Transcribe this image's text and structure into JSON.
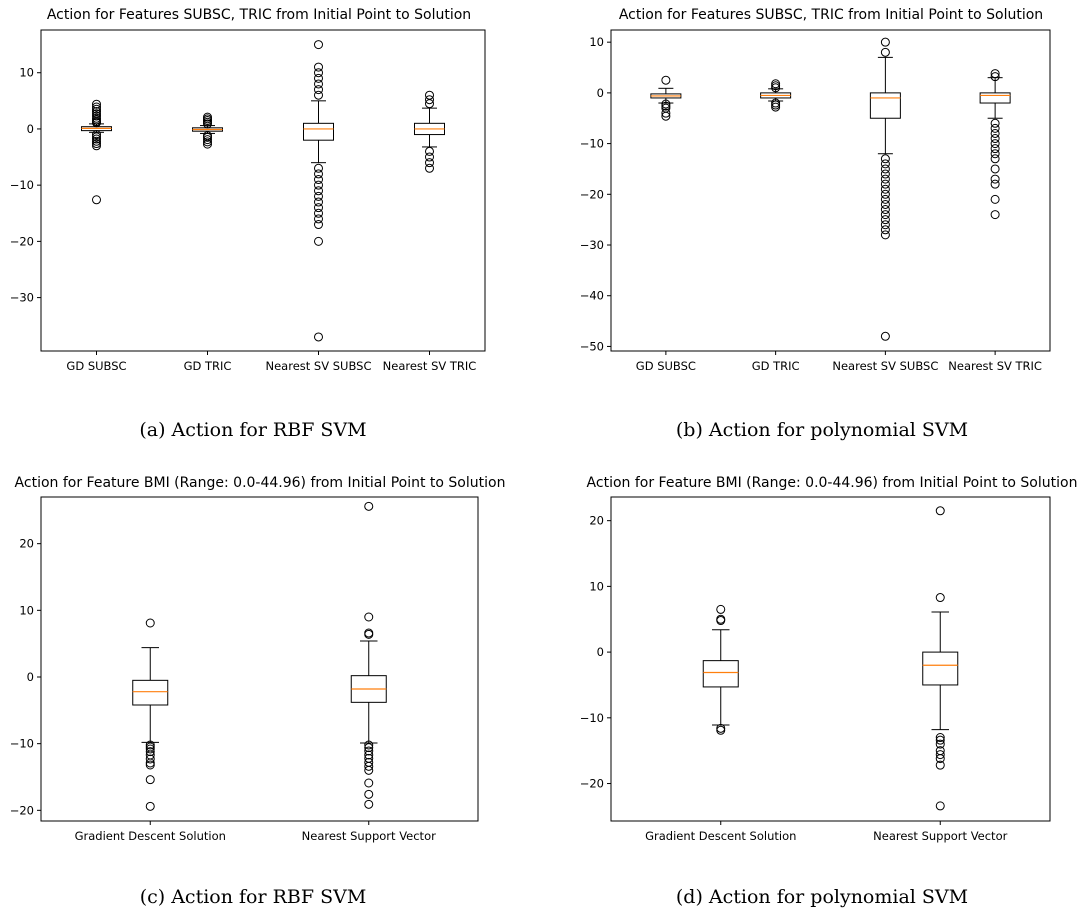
{
  "captions": [
    "(a) Action for RBF SVM",
    "(b) Action for polynomial SVM",
    "(c) Action for RBF SVM",
    "(d) Action for polynomial SVM"
  ],
  "colors": {
    "median": "#ff7f0e",
    "box": "#000000",
    "flier": "#000000",
    "frame": "#000000"
  },
  "chart_data": [
    {
      "type": "box",
      "title": "Action for Features SUBSC, TRIC from Initial Point to Solution",
      "xlabel": "",
      "ylabel": "",
      "ylim": [
        -39.5,
        17.6
      ],
      "yticks": [
        10,
        0,
        -10,
        -20,
        -30
      ],
      "categories": [
        "GD SUBSC",
        "GD TRIC",
        "Nearest SV SUBSC",
        "Nearest SV TRIC"
      ],
      "boxes": [
        {
          "q1": -0.3,
          "median": 0.1,
          "q3": 0.4,
          "whisker_low": -0.6,
          "whisker_high": 0.9,
          "fliers": [
            4.4,
            3.9,
            3.5,
            3.1,
            2.7,
            2.3,
            1.9,
            1.6,
            1.3,
            1.1,
            -1.0,
            -1.4,
            -1.8,
            -2.2,
            -2.6,
            -3.0,
            -12.6
          ]
        },
        {
          "q1": -0.4,
          "median": -0.1,
          "q3": 0.2,
          "whisker_low": -0.8,
          "whisker_high": 0.6,
          "fliers": [
            2.1,
            1.8,
            1.5,
            1.2,
            0.9,
            -1.2,
            -1.5,
            -1.9,
            -2.3,
            -2.7
          ]
        },
        {
          "q1": -2.0,
          "median": 0.0,
          "q3": 1.0,
          "whisker_low": -6.0,
          "whisker_high": 5.0,
          "fliers": [
            15.0,
            11.0,
            10.0,
            9.0,
            8.0,
            7.0,
            6.0,
            -7.0,
            -8.0,
            -9.0,
            -10.0,
            -11.0,
            -12.0,
            -13.0,
            -14.0,
            -15.0,
            -16.0,
            -17.0,
            -20.0,
            -37.0
          ]
        },
        {
          "q1": -1.0,
          "median": 0.0,
          "q3": 1.0,
          "whisker_low": -3.2,
          "whisker_high": 3.7,
          "fliers": [
            6.0,
            5.2,
            4.5,
            -4.0,
            -5.0,
            -6.0,
            -7.0
          ]
        }
      ]
    },
    {
      "type": "box",
      "title": "Action for Features SUBSC, TRIC from Initial Point to Solution",
      "xlabel": "",
      "ylabel": "",
      "ylim": [
        -50.9,
        12.4
      ],
      "yticks": [
        10,
        0,
        -10,
        -20,
        -30,
        -40,
        -50
      ],
      "categories": [
        "GD SUBSC",
        "GD TRIC",
        "Nearest SV SUBSC",
        "Nearest SV TRIC"
      ],
      "boxes": [
        {
          "q1": -1.0,
          "median": -0.6,
          "q3": -0.2,
          "whisker_low": -2.0,
          "whisker_high": 0.9,
          "fliers": [
            2.5,
            -2.2,
            -2.6,
            -3.0,
            -4.0,
            -4.6
          ]
        },
        {
          "q1": -1.0,
          "median": -0.5,
          "q3": 0.0,
          "whisker_low": -1.6,
          "whisker_high": 0.8,
          "fliers": [
            1.8,
            1.4,
            1.0,
            -2.0,
            -2.4,
            -2.8
          ]
        },
        {
          "q1": -5.0,
          "median": -1.0,
          "q3": 0.0,
          "whisker_low": -12.0,
          "whisker_high": 7.0,
          "fliers": [
            10.0,
            8.0,
            -13.0,
            -14.0,
            -15.0,
            -16.0,
            -17.0,
            -18.0,
            -19.0,
            -20.0,
            -21.0,
            -22.0,
            -23.0,
            -24.0,
            -25.0,
            -26.0,
            -27.0,
            -28.0,
            -48.0
          ]
        },
        {
          "q1": -2.0,
          "median": -0.5,
          "q3": 0.0,
          "whisker_low": -5.0,
          "whisker_high": 3.0,
          "fliers": [
            3.8,
            3.2,
            -6.0,
            -7.0,
            -8.0,
            -9.0,
            -10.0,
            -11.0,
            -12.0,
            -13.0,
            -15.0,
            -17.0,
            -18.0,
            -21.0,
            -24.0
          ]
        }
      ]
    },
    {
      "type": "box",
      "title": "Action for Feature BMI (Range: 0.0-44.96) from Initial Point to Solution",
      "xlabel": "",
      "ylabel": "",
      "ylim": [
        -21.6,
        27.0
      ],
      "yticks": [
        20,
        10,
        0,
        -10,
        -20
      ],
      "categories": [
        "Gradient Descent Solution",
        "Nearest Support Vector"
      ],
      "boxes": [
        {
          "q1": -4.2,
          "median": -2.2,
          "q3": -0.5,
          "whisker_low": -9.8,
          "whisker_high": 4.4,
          "fliers": [
            8.1,
            -10.2,
            -10.5,
            -10.8,
            -11.2,
            -11.7,
            -12.3,
            -12.9,
            -13.2,
            -15.4,
            -19.4
          ]
        },
        {
          "q1": -3.8,
          "median": -1.8,
          "q3": 0.2,
          "whisker_low": -9.9,
          "whisker_high": 5.4,
          "fliers": [
            25.6,
            9.0,
            6.6,
            6.4,
            -10.2,
            -10.6,
            -11.1,
            -11.7,
            -12.2,
            -12.8,
            -13.4,
            -14.0,
            -15.9,
            -17.6,
            -19.1
          ]
        }
      ]
    },
    {
      "type": "box",
      "title": "Action for Feature BMI (Range: 0.0-44.96) from Initial Point to Solution",
      "xlabel": "",
      "ylabel": "",
      "ylim": [
        -25.7,
        23.6
      ],
      "yticks": [
        20,
        10,
        0,
        -10,
        -20
      ],
      "categories": [
        "Gradient Descent Solution",
        "Nearest Support Vector"
      ],
      "boxes": [
        {
          "q1": -5.3,
          "median": -3.1,
          "q3": -1.3,
          "whisker_low": -11.1,
          "whisker_high": 3.4,
          "fliers": [
            6.5,
            5.0,
            4.8,
            -11.6,
            -11.9
          ]
        },
        {
          "q1": -5.0,
          "median": -2.0,
          "q3": 0.0,
          "whisker_low": -11.8,
          "whisker_high": 6.1,
          "fliers": [
            21.5,
            8.3,
            -13.0,
            -13.4,
            -14.0,
            -15.0,
            -15.6,
            -16.2,
            -17.2,
            -23.4
          ]
        }
      ]
    }
  ]
}
